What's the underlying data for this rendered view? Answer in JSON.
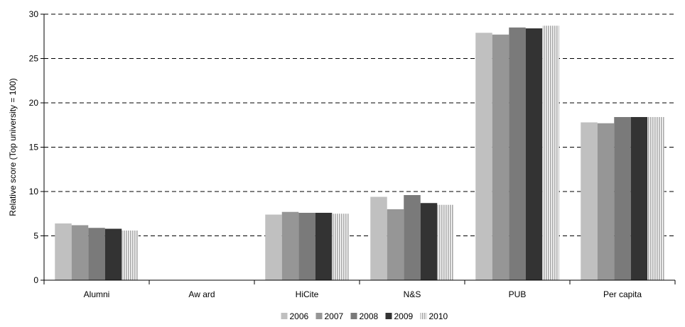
{
  "chart_data": {
    "type": "bar",
    "title": "",
    "xlabel": "",
    "ylabel": "Relative score (Top university = 100)",
    "ylim": [
      0,
      30
    ],
    "yticks": [
      0,
      5,
      10,
      15,
      20,
      25,
      30
    ],
    "grid": "horizontal-dashed",
    "legend_position": "bottom",
    "categories": [
      "Alumni",
      "Aw ard",
      "HiCite",
      "N&S",
      "PUB",
      "Per capita"
    ],
    "series": [
      {
        "name": "2006",
        "color": "#c0c0c0",
        "pattern": "solid",
        "values": [
          6.4,
          0,
          7.4,
          9.4,
          27.9,
          17.8
        ]
      },
      {
        "name": "2007",
        "color": "#969696",
        "pattern": "solid",
        "values": [
          6.2,
          0,
          7.7,
          8.0,
          27.7,
          17.7
        ]
      },
      {
        "name": "2008",
        "color": "#7a7a7a",
        "pattern": "solid",
        "values": [
          5.9,
          0,
          7.6,
          9.6,
          28.5,
          18.4
        ]
      },
      {
        "name": "2009",
        "color": "#333333",
        "pattern": "solid",
        "values": [
          5.8,
          0,
          7.6,
          8.7,
          28.4,
          18.4
        ]
      },
      {
        "name": "2010",
        "color": "#b0b0b0",
        "pattern": "vertical-stripes",
        "values": [
          5.6,
          0,
          7.5,
          8.5,
          28.7,
          18.4
        ]
      }
    ]
  }
}
